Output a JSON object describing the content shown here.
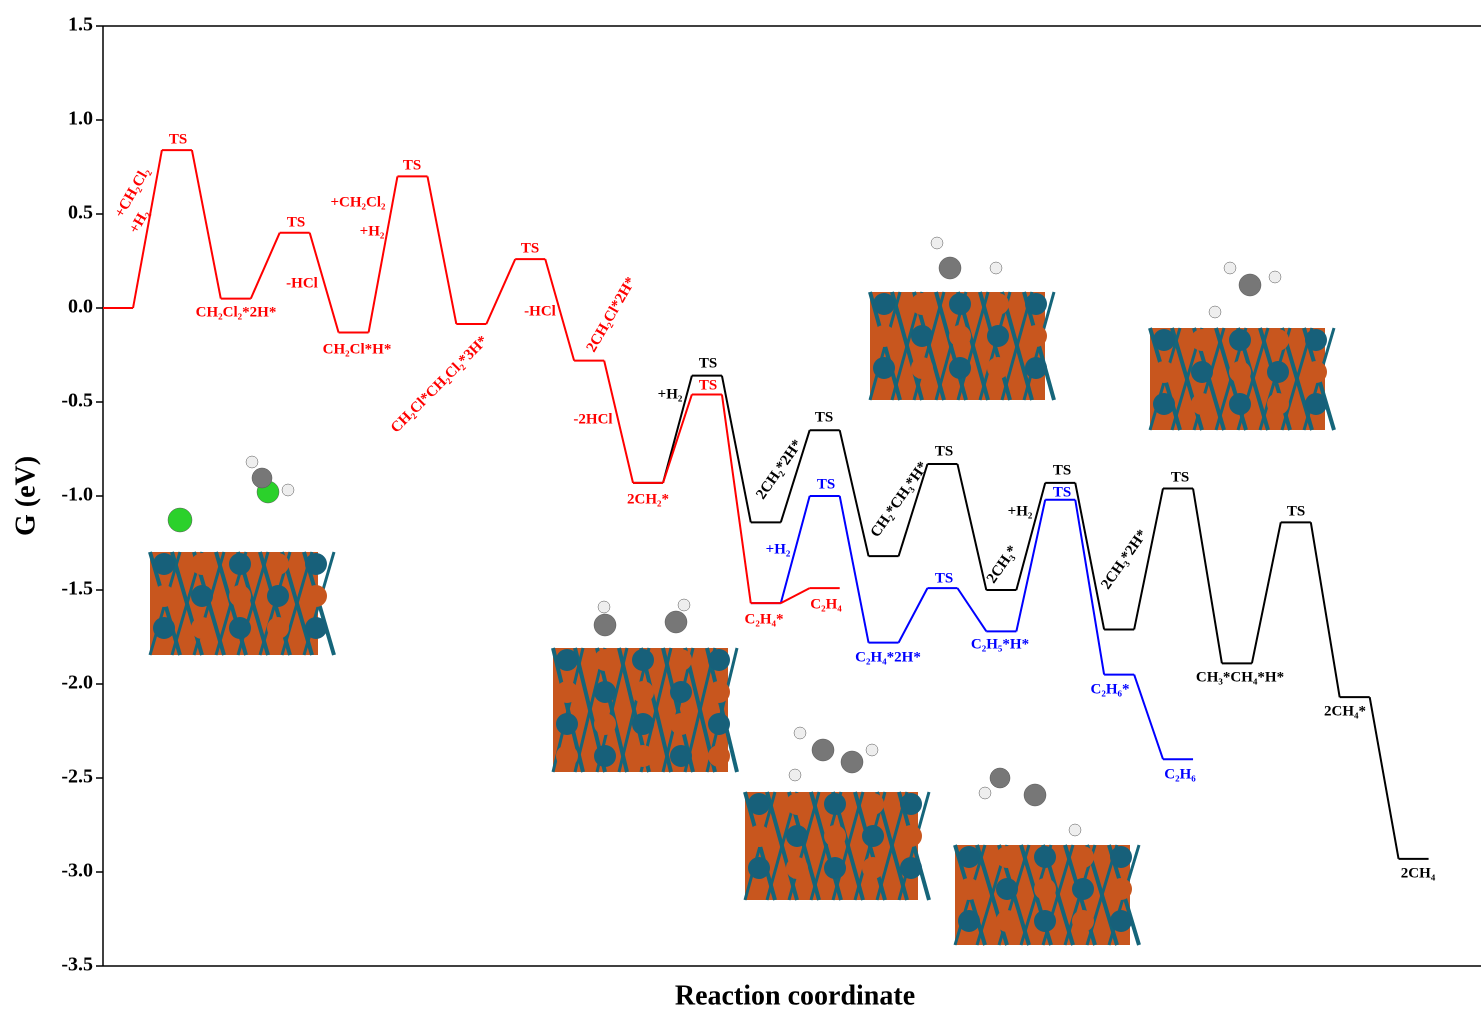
{
  "chart_data": {
    "type": "energy-profile",
    "ylabel": "G (eV)",
    "xlabel": "Reaction coordinate",
    "ylim": [
      -3.5,
      1.5
    ],
    "yticks": [
      1.5,
      {
        "value": 1,
        "label": "1.0"
      },
      0.5,
      {
        "value": 0,
        "label": "0.0"
      },
      -0.5,
      {
        "value": -1,
        "label": "-1.0"
      },
      -1.5,
      {
        "value": -2,
        "label": "-2.0"
      },
      -2.5,
      {
        "value": -3,
        "label": "-3.0"
      },
      -3.5
    ],
    "xlim": [
      0,
      23.4
    ],
    "series": [
      {
        "color": "#000000",
        "x": [
          9,
          10,
          11,
          12,
          13,
          14,
          15,
          16,
          17,
          18,
          19,
          20,
          21,
          22
        ],
        "values": [
          -0.93,
          -0.36,
          -1.14,
          -0.65,
          -1.32,
          -0.83,
          -1.5,
          -0.93,
          -1.71,
          -0.96,
          -1.89,
          -1.14,
          -2.07,
          -2.93
        ],
        "labels": [
          "+H₂",
          "TS",
          "2CH₂*2H*",
          "TS",
          "CH₂*CH₃*H*",
          "TS",
          "+H₂",
          "2CH₃*",
          "TS",
          "2CH₃*2H*",
          "TS",
          "CH₃*CH₄*H*",
          "TS",
          "2CH₄*",
          "2CH₄"
        ]
      },
      {
        "color": "#0000ff",
        "x": [
          11,
          12,
          13,
          14,
          15,
          16,
          17,
          18
        ],
        "values": [
          -1.57,
          -1.0,
          -1.78,
          -1.49,
          -1.72,
          -1.02,
          -1.95,
          -2.4
        ],
        "labels": [
          "TS",
          "+H₂",
          "C₂H₄*2H*",
          "TS",
          "C₂H₅*H*",
          "TS",
          "C₂H₆*",
          "C₂H₆"
        ]
      },
      {
        "color": "#ff0000",
        "x": [
          0,
          1,
          2,
          3,
          4,
          5,
          6,
          7,
          8,
          9,
          10,
          11,
          12
        ],
        "values": [
          0,
          0.84,
          0.05,
          0.4,
          -0.13,
          0.7,
          -0.085,
          0.26,
          -0.28,
          -0.93,
          -0.46,
          -1.57,
          -1.49
        ],
        "labels": [
          "+CH₂Cl₂",
          "+H₂",
          "TS",
          "CH₂Cl₂*2H*",
          "TS",
          "-HCl",
          "CH₂Cl*H*",
          "+CH₂Cl₂",
          "+H₂",
          "TS",
          "CH₂Cl*CH₂Cl₂*3H*",
          "TS",
          "-HCl",
          "2CH₂Cl*2H*",
          "-2HCl",
          "2CH₂*",
          "TS",
          "C₂H₄*",
          "C₂H₄"
        ]
      }
    ]
  }
}
